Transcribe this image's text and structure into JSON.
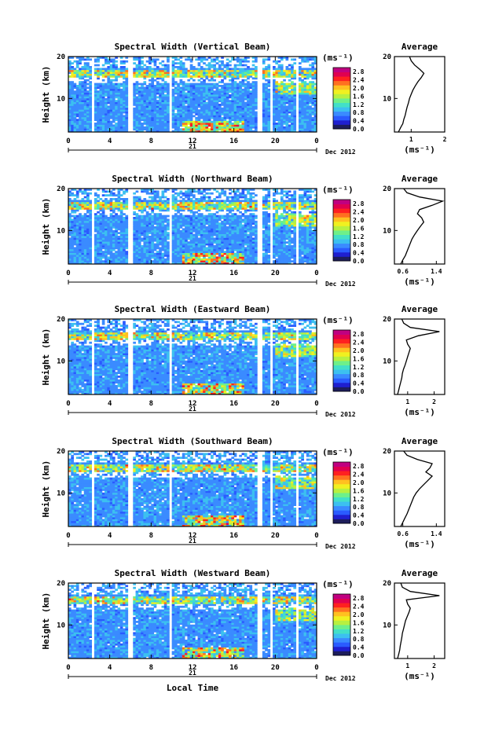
{
  "colors": {
    "scale": [
      "#1d1d5c",
      "#1f1fd0",
      "#2a5bff",
      "#3a8bff",
      "#3cc0f0",
      "#42e0c8",
      "#6ef08a",
      "#b8f040",
      "#f0f020",
      "#ffc020",
      "#ff7020",
      "#ff2020",
      "#e00050",
      "#c00080"
    ],
    "gap": "#ffffff"
  },
  "date_label": "Dec 2012",
  "day_label": "21",
  "xlabel": "Local Time",
  "ylabel": "Height (km)",
  "units_label": "(ms⁻¹)",
  "profile_units_label": "(ms⁻¹)",
  "average_title": "Average",
  "chart_data": [
    {
      "type": "heatmap",
      "title": "Spectral Width (Vertical Beam)",
      "x_ticks": [
        "0",
        "4",
        "8",
        "12",
        "16",
        "20",
        "0"
      ],
      "xlim": [
        0,
        24
      ],
      "y_ticks": [
        "20",
        "10"
      ],
      "ylim": [
        2,
        20
      ],
      "colorbar_ticks": [
        "2.8",
        "2.4",
        "2.0",
        "1.6",
        "1.2",
        "0.8",
        "0.4",
        "0.0"
      ],
      "colorbar_range": [
        0.0,
        3.0
      ],
      "data_gaps_hours": [
        [
          2.3,
          2.6
        ],
        [
          5.8,
          6.2
        ],
        [
          9.7,
          10.0
        ],
        [
          18.2,
          18.8
        ],
        [
          19.5,
          19.7
        ],
        [
          22.0,
          22.3
        ]
      ],
      "profile": {
        "type": "line",
        "x_ticks": [
          "1",
          "2"
        ],
        "y_ticks": [
          "20",
          "10"
        ],
        "xlim": [
          0.5,
          2.0
        ],
        "ylim": [
          2,
          20
        ],
        "x": [
          0.62,
          0.68,
          0.75,
          0.78,
          0.82,
          0.85,
          0.88,
          0.92,
          0.95,
          1.0,
          1.05,
          1.12,
          1.2,
          1.3,
          1.38,
          1.25,
          1.1,
          1.0,
          0.95
        ],
        "y": [
          2,
          3,
          4,
          5,
          6,
          7,
          8,
          9,
          10,
          11,
          12,
          13,
          14,
          15,
          16,
          17,
          18,
          19,
          20
        ]
      }
    },
    {
      "type": "heatmap",
      "title": "Spectral Width (Northward Beam)",
      "x_ticks": [
        "0",
        "4",
        "8",
        "12",
        "16",
        "20",
        "0"
      ],
      "xlim": [
        0,
        24
      ],
      "y_ticks": [
        "20",
        "10"
      ],
      "ylim": [
        2,
        20
      ],
      "colorbar_ticks": [
        "2.8",
        "2.4",
        "2.0",
        "1.6",
        "1.2",
        "0.8",
        "0.4",
        "0.0"
      ],
      "colorbar_range": [
        0.0,
        3.0
      ],
      "data_gaps_hours": [
        [
          2.3,
          2.6
        ],
        [
          5.8,
          6.2
        ],
        [
          9.7,
          10.0
        ],
        [
          18.2,
          18.8
        ],
        [
          19.5,
          19.7
        ],
        [
          22.0,
          22.3
        ]
      ],
      "profile": {
        "type": "line",
        "x_ticks": [
          "0.6",
          "1.4"
        ],
        "y_ticks": [
          "20",
          "10"
        ],
        "xlim": [
          0.4,
          1.6
        ],
        "ylim": [
          2,
          20
        ],
        "x": [
          0.55,
          0.6,
          0.66,
          0.7,
          0.74,
          0.78,
          0.82,
          0.88,
          0.95,
          1.02,
          1.1,
          1.05,
          0.95,
          1.0,
          1.3,
          1.55,
          1.0,
          0.7,
          0.62
        ],
        "y": [
          2,
          3,
          4,
          5,
          6,
          7,
          8,
          9,
          10,
          11,
          12,
          13,
          14,
          15,
          16,
          17,
          18,
          19,
          20
        ]
      }
    },
    {
      "type": "heatmap",
      "title": "Spectral Width (Eastward Beam)",
      "x_ticks": [
        "0",
        "4",
        "8",
        "12",
        "16",
        "20",
        "0"
      ],
      "xlim": [
        0,
        24
      ],
      "y_ticks": [
        "20",
        "10"
      ],
      "ylim": [
        2,
        20
      ],
      "colorbar_ticks": [
        "2.8",
        "2.4",
        "2.0",
        "1.6",
        "1.2",
        "0.8",
        "0.4",
        "0.0"
      ],
      "colorbar_range": [
        0.0,
        3.0
      ],
      "data_gaps_hours": [
        [
          2.3,
          2.6
        ],
        [
          5.8,
          6.2
        ],
        [
          9.7,
          10.0
        ],
        [
          18.2,
          18.8
        ],
        [
          19.5,
          19.7
        ],
        [
          22.0,
          22.3
        ]
      ],
      "profile": {
        "type": "line",
        "x_ticks": [
          "1",
          "2"
        ],
        "y_ticks": [
          "20",
          "10"
        ],
        "xlim": [
          0.5,
          2.4
        ],
        "ylim": [
          2,
          20
        ],
        "x": [
          0.62,
          0.66,
          0.7,
          0.74,
          0.78,
          0.8,
          0.84,
          0.9,
          0.95,
          1.0,
          1.05,
          1.1,
          1.0,
          0.95,
          1.4,
          2.2,
          1.1,
          0.85,
          0.78
        ],
        "y": [
          2,
          3,
          4,
          5,
          6,
          7,
          8,
          9,
          10,
          11,
          12,
          13,
          14,
          15,
          16,
          17,
          18,
          19,
          20
        ]
      }
    },
    {
      "type": "heatmap",
      "title": "Spectral Width (Southward Beam)",
      "x_ticks": [
        "0",
        "4",
        "8",
        "12",
        "16",
        "20",
        "0"
      ],
      "xlim": [
        0,
        24
      ],
      "y_ticks": [
        "20",
        "10"
      ],
      "ylim": [
        2,
        20
      ],
      "colorbar_ticks": [
        "2.8",
        "2.4",
        "2.0",
        "1.6",
        "1.2",
        "0.8",
        "0.4",
        "0.0"
      ],
      "colorbar_range": [
        0.0,
        3.0
      ],
      "data_gaps_hours": [
        [
          2.3,
          2.6
        ],
        [
          5.8,
          6.2
        ],
        [
          9.7,
          10.0
        ],
        [
          18.2,
          18.8
        ],
        [
          19.5,
          19.7
        ],
        [
          22.0,
          22.3
        ]
      ],
      "profile": {
        "type": "line",
        "x_ticks": [
          "0.6",
          "1.4"
        ],
        "y_ticks": [
          "20",
          "10"
        ],
        "xlim": [
          0.4,
          1.6
        ],
        "ylim": [
          2,
          20
        ],
        "x": [
          0.55,
          0.6,
          0.65,
          0.7,
          0.74,
          0.78,
          0.82,
          0.86,
          0.92,
          1.0,
          1.1,
          1.2,
          1.3,
          1.15,
          1.25,
          1.3,
          0.95,
          0.7,
          0.62
        ],
        "y": [
          2,
          3,
          4,
          5,
          6,
          7,
          8,
          9,
          10,
          11,
          12,
          13,
          14,
          15,
          16,
          17,
          18,
          19,
          20
        ]
      }
    },
    {
      "type": "heatmap",
      "title": "Spectral Width (Westward Beam)",
      "x_ticks": [
        "0",
        "4",
        "8",
        "12",
        "16",
        "20",
        "0"
      ],
      "xlim": [
        0,
        24
      ],
      "y_ticks": [
        "20",
        "10"
      ],
      "ylim": [
        2,
        20
      ],
      "colorbar_ticks": [
        "2.8",
        "2.4",
        "2.0",
        "1.6",
        "1.2",
        "0.8",
        "0.4",
        "0.0"
      ],
      "colorbar_range": [
        0.0,
        3.0
      ],
      "data_gaps_hours": [
        [
          2.3,
          2.6
        ],
        [
          5.8,
          6.2
        ],
        [
          9.7,
          10.0
        ],
        [
          18.2,
          18.8
        ],
        [
          19.5,
          19.7
        ],
        [
          22.0,
          22.3
        ]
      ],
      "profile": {
        "type": "line",
        "x_ticks": [
          "1",
          "2"
        ],
        "y_ticks": [
          "20",
          "10"
        ],
        "xlim": [
          0.5,
          2.4
        ],
        "ylim": [
          2,
          20
        ],
        "x": [
          0.62,
          0.66,
          0.7,
          0.72,
          0.75,
          0.78,
          0.8,
          0.84,
          0.88,
          0.92,
          0.98,
          1.05,
          1.1,
          1.0,
          0.95,
          2.2,
          1.1,
          0.8,
          0.74
        ],
        "y": [
          2,
          3,
          4,
          5,
          6,
          7,
          8,
          9,
          10,
          11,
          12,
          13,
          14,
          15,
          16,
          17,
          18,
          19,
          20
        ]
      }
    }
  ]
}
